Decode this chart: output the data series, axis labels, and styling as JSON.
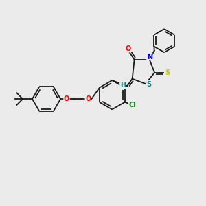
{
  "bg_color": "#ebebeb",
  "figsize": [
    3.0,
    3.0
  ],
  "dpi": 100,
  "bond_color": "#1a1a1a",
  "bond_lw": 1.3,
  "atom_colors": {
    "O": "#ff0000",
    "N": "#0000ff",
    "S_thioxo": "#cccc00",
    "S_ring": "#008080",
    "Cl": "#008800",
    "H": "#008080",
    "C": "#1a1a1a"
  },
  "font_size_atom": 7.0
}
